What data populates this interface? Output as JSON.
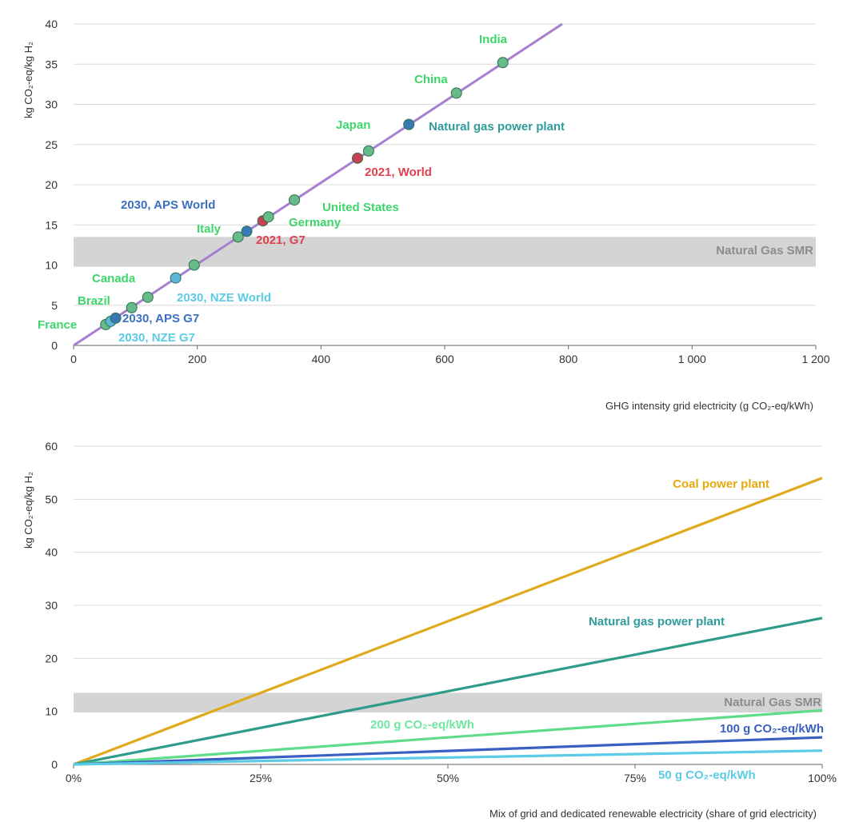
{
  "chart_data": [
    {
      "type": "scatter",
      "title": "",
      "xlabel": "GHG intensity grid electricity (g CO₂-eq/kWh)",
      "ylabel": "kg CO₂-eq/kg H₂",
      "xlim": [
        0,
        1200
      ],
      "ylim": [
        0,
        40
      ],
      "x_ticks": [
        {
          "value": 0,
          "label": "0"
        },
        {
          "value": 200,
          "label": "200"
        },
        {
          "value": 400,
          "label": "400"
        },
        {
          "value": 600,
          "label": "600"
        },
        {
          "value": 800,
          "label": "800"
        },
        {
          "value": 1000,
          "label": "1 000"
        },
        {
          "value": 1200,
          "label": "1 200"
        }
      ],
      "y_ticks": [
        {
          "value": 0,
          "label": "0"
        },
        {
          "value": 5,
          "label": "5"
        },
        {
          "value": 10,
          "label": "10"
        },
        {
          "value": 15,
          "label": "15"
        },
        {
          "value": 20,
          "label": "20"
        },
        {
          "value": 25,
          "label": "25"
        },
        {
          "value": 30,
          "label": "30"
        },
        {
          "value": 35,
          "label": "35"
        },
        {
          "value": 40,
          "label": "40"
        }
      ],
      "grid": true,
      "line": {
        "color": "#a67fd0",
        "x": [
          0,
          790
        ],
        "y": [
          0,
          40
        ]
      },
      "band": {
        "label": "Natural Gas SMR",
        "y_range": [
          9.8,
          13.5
        ],
        "color": "#d4d4d4",
        "label_color": "#8c8c8c"
      },
      "points": [
        {
          "name": "France",
          "x": 52,
          "y": 2.6,
          "color": "#66bb88",
          "label_color": "#3dd66b"
        },
        {
          "name": "2030, NZE G7",
          "x": 60,
          "y": 3.0,
          "color": "#5bb8d9",
          "label_color": "#5bcbe6"
        },
        {
          "name": "2030, APS G7",
          "x": 68,
          "y": 3.4,
          "color": "#3a78b5",
          "label_color": "#3a6fc2"
        },
        {
          "name": "Brazil",
          "x": 94,
          "y": 4.7,
          "color": "#66bb88",
          "label_color": "#3dd66b"
        },
        {
          "name": "Canada",
          "x": 120,
          "y": 6.0,
          "color": "#66bb88",
          "label_color": "#3dd66b"
        },
        {
          "name": "2030, NZE World",
          "x": 165,
          "y": 8.4,
          "color": "#5bb8d9",
          "label_color": "#5bcbe6"
        },
        {
          "name": "",
          "x": 195,
          "y": 10.0,
          "color": "#66bb88",
          "label_color": "#3dd66b"
        },
        {
          "name": "Italy",
          "x": 266,
          "y": 13.5,
          "color": "#66bb88",
          "label_color": "#3dd66b"
        },
        {
          "name": "2030, APS World",
          "x": 280,
          "y": 14.2,
          "color": "#3a78b5",
          "label_color": "#3a6fc2"
        },
        {
          "name": "2021, G7",
          "x": 306,
          "y": 15.5,
          "color": "#c8404f",
          "label_color": "#e0404f"
        },
        {
          "name": "Germany",
          "x": 315,
          "y": 16.0,
          "color": "#66bb88",
          "label_color": "#3dd66b"
        },
        {
          "name": "United States",
          "x": 357,
          "y": 18.1,
          "color": "#66bb88",
          "label_color": "#3dd66b"
        },
        {
          "name": "2021, World",
          "x": 459,
          "y": 23.3,
          "color": "#c8404f",
          "label_color": "#e0404f"
        },
        {
          "name": "Japan",
          "x": 477,
          "y": 24.2,
          "color": "#66bb88",
          "label_color": "#3dd66b"
        },
        {
          "name": "Natural gas power plant",
          "x": 542,
          "y": 27.5,
          "color": "#3a78b5",
          "label_color": "#2f9b9b"
        },
        {
          "name": "China",
          "x": 619,
          "y": 31.4,
          "color": "#66bb88",
          "label_color": "#3dd66b"
        },
        {
          "name": "India",
          "x": 694,
          "y": 35.2,
          "color": "#66bb88",
          "label_color": "#3dd66b"
        }
      ]
    },
    {
      "type": "line",
      "title": "",
      "xlabel": "Mix of grid and dedicated renewable electricity (share of grid electricity)",
      "ylabel": "kg CO₂-eq/kg H₂",
      "xlim": [
        0,
        100
      ],
      "ylim": [
        0,
        60
      ],
      "x_ticks": [
        {
          "value": 0,
          "label": "0%"
        },
        {
          "value": 25,
          "label": "25%"
        },
        {
          "value": 50,
          "label": "50%"
        },
        {
          "value": 75,
          "label": "75%"
        },
        {
          "value": 100,
          "label": "100%"
        }
      ],
      "y_ticks": [
        {
          "value": 0,
          "label": "0"
        },
        {
          "value": 10,
          "label": "10"
        },
        {
          "value": 20,
          "label": "20"
        },
        {
          "value": 30,
          "label": "30"
        },
        {
          "value": 40,
          "label": "40"
        },
        {
          "value": 50,
          "label": "50"
        },
        {
          "value": 60,
          "label": "60"
        }
      ],
      "grid": true,
      "band": {
        "label": "Natural Gas SMR",
        "y_range": [
          9.8,
          13.5
        ],
        "color": "#d4d4d4",
        "label_color": "#8c8c8c"
      },
      "series": [
        {
          "name": "Coal power plant",
          "x": [
            0,
            100
          ],
          "y": [
            0,
            54
          ],
          "color": "#e0aa1e",
          "label_color": "#e8a80e"
        },
        {
          "name": "Natural gas power plant",
          "x": [
            0,
            100
          ],
          "y": [
            0,
            27.6
          ],
          "color": "#2f9b8b",
          "label_color": "#2f9b9b"
        },
        {
          "name": "200 g CO₂-eq/kWh",
          "x": [
            0,
            100
          ],
          "y": [
            0,
            10.2
          ],
          "color": "#5fdc8a",
          "label_color": "#6ee7a0"
        },
        {
          "name": "100 g CO₂-eq/kWh",
          "x": [
            0,
            100
          ],
          "y": [
            0,
            5.1
          ],
          "color": "#3a5fc2",
          "label_color": "#3a5fc2"
        },
        {
          "name": "50 g CO₂-eq/kWh",
          "x": [
            0,
            100
          ],
          "y": [
            0,
            2.6
          ],
          "color": "#5bcbe6",
          "label_color": "#5bcbe6"
        }
      ]
    }
  ]
}
